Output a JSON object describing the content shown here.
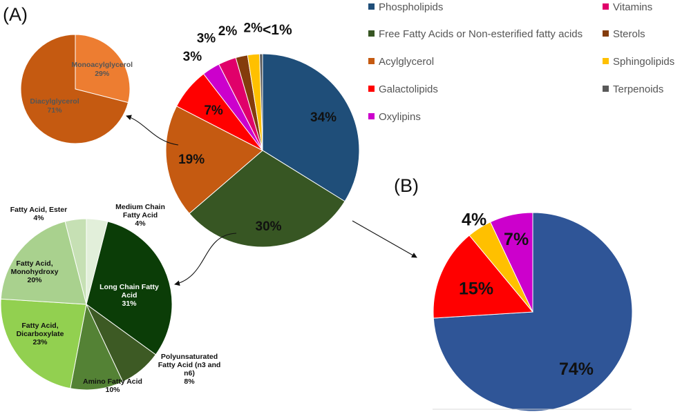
{
  "panel_labels": {
    "a": "(A)",
    "b": "(B)"
  },
  "chart_data": [
    {
      "id": "main",
      "type": "pie",
      "labels": [
        "Phospholipids",
        "Free Fatty Acids or Non-esterified fatty acids",
        "Acylglycerol",
        "Galactolipids",
        "Oxylipins",
        "Vitamins",
        "Sterols",
        "Sphingolipids",
        "Terpenoids"
      ],
      "values": [
        34,
        30,
        19,
        7,
        3,
        3,
        2,
        2,
        0.5
      ],
      "data_labels": [
        "34%",
        "30%",
        "19%",
        "7%",
        "3%",
        "3%",
        "2%",
        "2%",
        "<1%"
      ],
      "colors": [
        "#1f4e79",
        "#375623",
        "#c55a11",
        "#ff0000",
        "#cc00cc",
        "#e0006a",
        "#843c0c",
        "#ffc000",
        "#595959"
      ],
      "legend": "right"
    },
    {
      "id": "acylglycerol",
      "type": "pie",
      "labels": [
        "Monoacylglycerol",
        "Diacylglycerol"
      ],
      "values": [
        29,
        71
      ],
      "data_labels": [
        "29%",
        "71%"
      ],
      "colors": [
        "#ed7d31",
        "#c55a11"
      ]
    },
    {
      "id": "free_fatty_acids",
      "type": "pie",
      "labels": [
        "Medium Chain Fatty Acid",
        "Long Chain Fatty Acid",
        "Polyunsaturated Fatty Acid (n3 and n6)",
        "Amino Fatty Acid",
        "Fatty Acid, Dicarboxylate",
        "Fatty Acid, Monohydroxy",
        "Fatty Acid, Ester"
      ],
      "values": [
        4,
        31,
        8,
        10,
        23,
        20,
        4
      ],
      "data_labels": [
        "4%",
        "31%",
        "8%",
        "10%",
        "23%",
        "20%",
        "4%"
      ],
      "colors": [
        "#e2efda",
        "#0b3d07",
        "#3d5a24",
        "#548235",
        "#92d050",
        "#a9d18e",
        "#c6e0b4"
      ]
    },
    {
      "id": "panel_b",
      "type": "pie",
      "labels": [
        "Phospholipids",
        "Galactolipids",
        "Sphingolipids",
        "Oxylipins"
      ],
      "values": [
        74,
        15,
        4,
        7
      ],
      "data_labels": [
        "74%",
        "15%",
        "4%",
        "7%"
      ],
      "colors": [
        "#2f5597",
        "#ff0000",
        "#ffc000",
        "#cc00cc"
      ]
    }
  ]
}
